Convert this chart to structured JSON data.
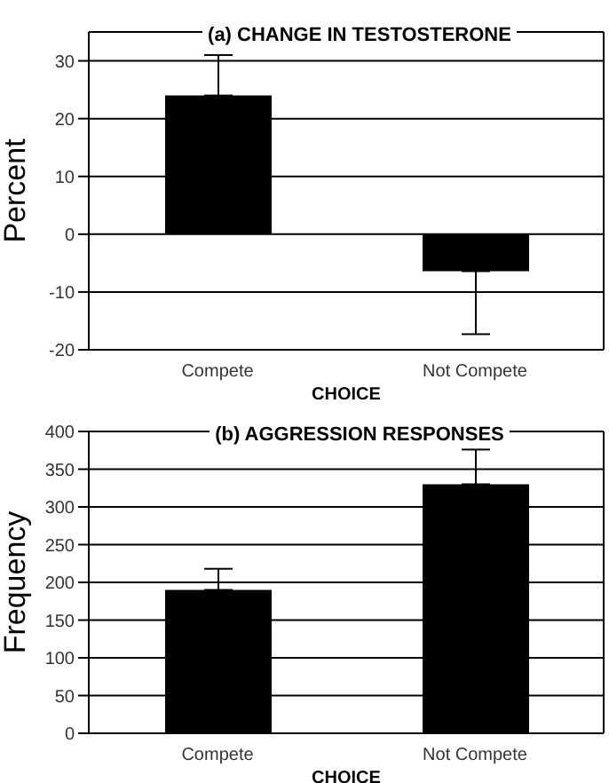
{
  "chart_data": [
    {
      "type": "bar",
      "title": "(a) CHANGE IN TESTOSTERONE",
      "xlabel": "CHOICE",
      "ylabel": "Percent",
      "categories": [
        "Compete",
        "Not Compete"
      ],
      "values": [
        24,
        -6.4
      ],
      "errors": [
        [
          24,
          31
        ],
        [
          -17.3,
          -6.4
        ]
      ],
      "color": "#000000",
      "ylim": [
        -20,
        35
      ],
      "yticks": [
        -20,
        -10,
        0,
        10,
        20,
        30
      ],
      "grid": "y",
      "legend": false
    },
    {
      "type": "bar",
      "title": "(b) AGGRESSION RESPONSES",
      "xlabel": "CHOICE",
      "ylabel": "Frequency",
      "categories": [
        "Compete",
        "Not Compete"
      ],
      "values": [
        190,
        330
      ],
      "errors": [
        [
          190,
          218
        ],
        [
          330,
          376
        ]
      ],
      "color": "#000000",
      "ylim": [
        0,
        400
      ],
      "yticks": [
        0,
        50,
        100,
        150,
        200,
        250,
        300,
        350,
        400
      ],
      "grid": "y",
      "legend": false
    }
  ]
}
